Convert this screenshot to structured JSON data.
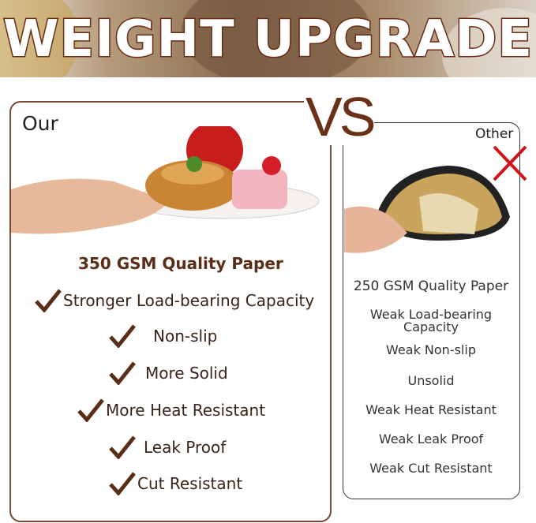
{
  "banner": {
    "title": "WEIGHT UPGRADE"
  },
  "vs_label": "VS",
  "our": {
    "label": "Our",
    "heading": "350 GSM Quality Paper",
    "features": [
      "Stronger Load-bearing Capacity",
      "Non-slip",
      "More Solid",
      "More Heat Resistant",
      "Leak Proof",
      "Cut Resistant"
    ],
    "icon": "checkmark-icon"
  },
  "other": {
    "label": "Other",
    "heading": "250 GSM Quality Paper",
    "features": [
      "Weak Load-bearing Capacity",
      "Weak Non-slip",
      "Unsolid",
      "Weak Heat Resistant",
      "Weak Leak Proof",
      "Weak Cut Resistant"
    ],
    "icon": "cross-icon"
  },
  "colors": {
    "brand_brown": "#6b3118",
    "cross_red": "#d0141a"
  }
}
